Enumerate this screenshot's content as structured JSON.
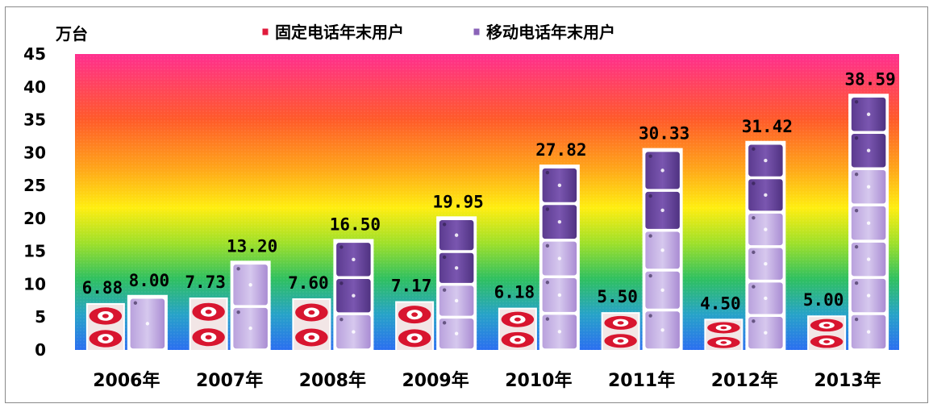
{
  "chart_data": {
    "type": "bar",
    "unit_label": "万台",
    "categories": [
      "2006年",
      "2007年",
      "2008年",
      "2009年",
      "2010年",
      "2011年",
      "2012年",
      "2013年"
    ],
    "series": [
      {
        "name": "固定电话年末用户",
        "values": [
          6.88,
          7.73,
          7.6,
          7.17,
          6.18,
          5.5,
          4.5,
          5.0
        ],
        "labels": [
          "6.88",
          "7.73",
          "7.60",
          "7.17",
          "6.18",
          "5.50",
          "4.50",
          "5.00"
        ],
        "color": "#e01b3c"
      },
      {
        "name": "移动电话年末用户",
        "values": [
          8.0,
          13.2,
          16.5,
          19.95,
          27.82,
          30.33,
          31.42,
          38.59
        ],
        "labels": [
          "8.00",
          "13.20",
          "16.50",
          "19.95",
          "27.82",
          "30.33",
          "31.42",
          "38.59"
        ],
        "color": "#8a63b8"
      }
    ],
    "ylim": [
      0,
      45
    ],
    "yticks": [
      "0",
      "5",
      "10",
      "15",
      "20",
      "25",
      "30",
      "35",
      "40",
      "45"
    ],
    "legend_position": "top",
    "grid": false
  }
}
